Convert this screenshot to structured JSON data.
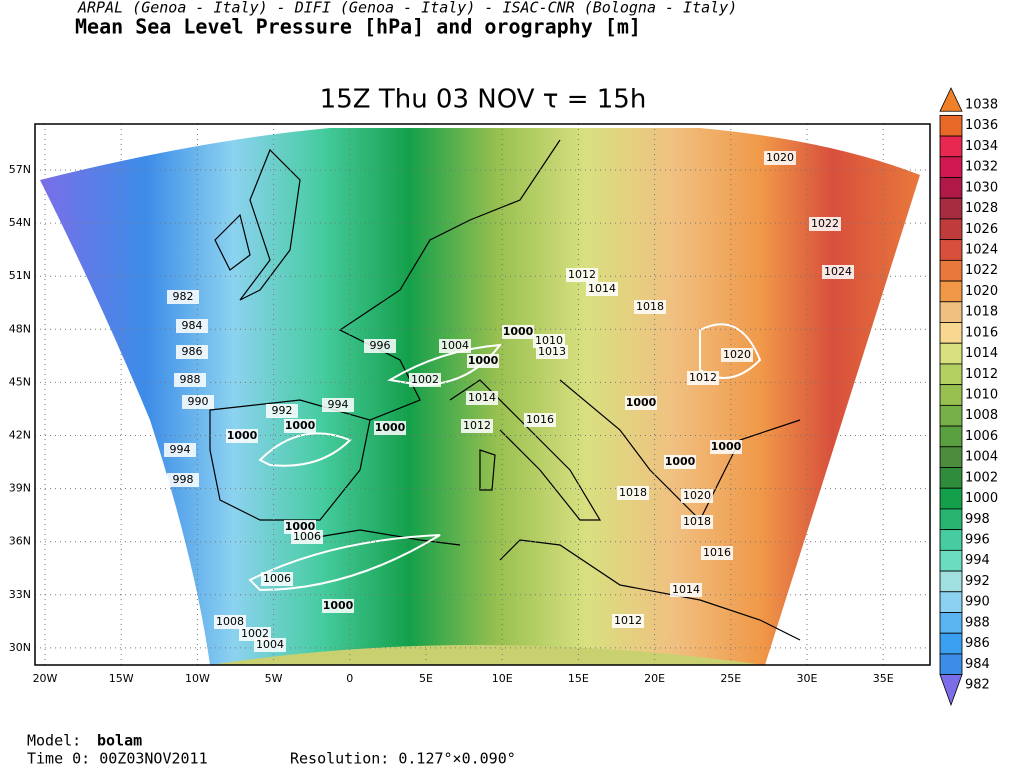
{
  "header": {
    "institutions": "ARPAL (Genoa - Italy)  -  DIFI (Genoa - Italy)  -  ISAC-CNR (Bologna - Italy)",
    "title": "Mean Sea Level Pressure [hPa] and orography [m]"
  },
  "map": {
    "title": "15Z Thu 03 NOV  τ = 15h",
    "lat_labels": [
      "57N",
      "54N",
      "51N",
      "48N",
      "45N",
      "42N",
      "39N",
      "36N",
      "33N",
      "30N"
    ],
    "lon_labels": [
      "20W",
      "15W",
      "10W",
      "5W",
      "0",
      "5E",
      "10E",
      "15E",
      "20E",
      "25E",
      "30E",
      "35E"
    ],
    "contour_labels": [
      982,
      984,
      986,
      988,
      990,
      992,
      994,
      998,
      996,
      994,
      1000,
      1000,
      1002,
      1004,
      1000,
      1000,
      1014,
      1012,
      1016,
      1012,
      1014,
      1018,
      1010,
      1013,
      1020,
      1022,
      1024,
      1020,
      1012,
      1000,
      1000,
      1000,
      1000,
      1018,
      1020,
      1018,
      1016,
      1014,
      1012,
      1000,
      1006,
      1006,
      1000,
      1008,
      1002,
      1004
    ]
  },
  "colorbar": {
    "levels": [
      1038,
      1036,
      1034,
      1032,
      1030,
      1028,
      1026,
      1024,
      1022,
      1020,
      1018,
      1016,
      1014,
      1012,
      1010,
      1008,
      1006,
      1004,
      1002,
      1000,
      998,
      996,
      994,
      992,
      990,
      988,
      986,
      984,
      982
    ],
    "colors": [
      "#f08028",
      "#e86828",
      "#e82850",
      "#d01850",
      "#b01848",
      "#a82c40",
      "#c03c3c",
      "#d8503c",
      "#e8783c",
      "#f09848",
      "#f0c080",
      "#f8d890",
      "#d8e080",
      "#b4d060",
      "#98c050",
      "#78b048",
      "#5aa040",
      "#4c8c3c",
      "#2e8c3c",
      "#14a04a",
      "#28b46e",
      "#46cca0",
      "#6cdcc0",
      "#a0e0e0",
      "#8cd2f0",
      "#5ab4f0",
      "#3ca0f0",
      "#3c8ce8",
      "#7b6ee8"
    ]
  },
  "footer": {
    "model_label": "Model:",
    "model": "bolam",
    "time0": "Time 0: 00Z03NOV2011",
    "resolution": "Resolution: 0.127°×0.090°"
  }
}
